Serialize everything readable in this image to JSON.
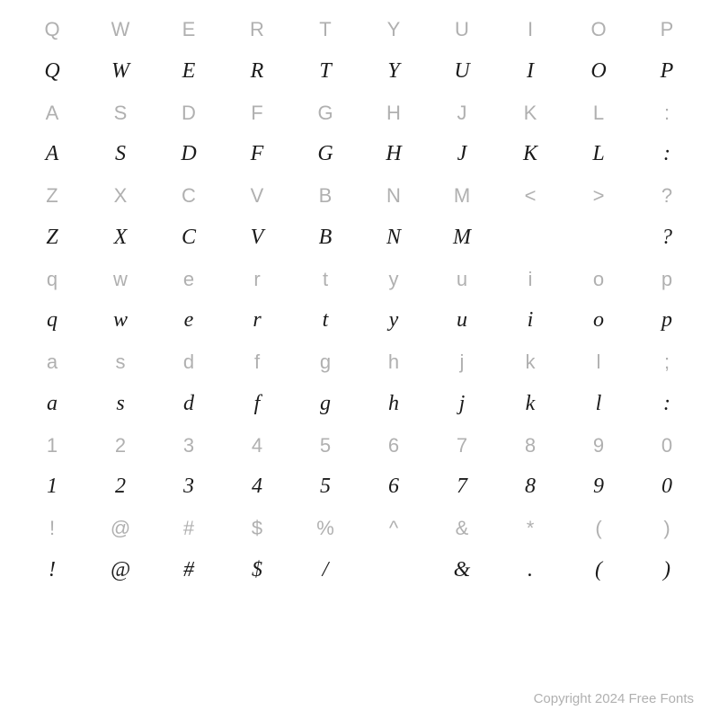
{
  "rows": [
    {
      "type": "label",
      "cells": [
        "Q",
        "W",
        "E",
        "R",
        "T",
        "Y",
        "U",
        "I",
        "O",
        "P"
      ]
    },
    {
      "type": "glyph",
      "cells": [
        "Q",
        "W",
        "E",
        "R",
        "T",
        "Y",
        "U",
        "I",
        "O",
        "P"
      ]
    },
    {
      "type": "label",
      "cells": [
        "A",
        "S",
        "D",
        "F",
        "G",
        "H",
        "J",
        "K",
        "L",
        ":"
      ]
    },
    {
      "type": "glyph",
      "cells": [
        "A",
        "S",
        "D",
        "F",
        "G",
        "H",
        "J",
        "K",
        "L",
        ":"
      ]
    },
    {
      "type": "label",
      "cells": [
        "Z",
        "X",
        "C",
        "V",
        "B",
        "N",
        "M",
        "<",
        ">",
        "?"
      ]
    },
    {
      "type": "glyph",
      "cells": [
        "Z",
        "X",
        "C",
        "V",
        "B",
        "N",
        "M",
        "",
        "",
        "?"
      ]
    },
    {
      "type": "label",
      "cells": [
        "q",
        "w",
        "e",
        "r",
        "t",
        "y",
        "u",
        "i",
        "o",
        "p"
      ]
    },
    {
      "type": "glyph",
      "cells": [
        "q",
        "w",
        "e",
        "r",
        "t",
        "y",
        "u",
        "i",
        "o",
        "p"
      ]
    },
    {
      "type": "label",
      "cells": [
        "a",
        "s",
        "d",
        "f",
        "g",
        "h",
        "j",
        "k",
        "l",
        ";"
      ]
    },
    {
      "type": "glyph",
      "cells": [
        "a",
        "s",
        "d",
        "f",
        "g",
        "h",
        "j",
        "k",
        "l",
        ":"
      ]
    },
    {
      "type": "label",
      "cells": [
        "1",
        "2",
        "3",
        "4",
        "5",
        "6",
        "7",
        "8",
        "9",
        "0"
      ]
    },
    {
      "type": "glyph",
      "cells": [
        "1",
        "2",
        "3",
        "4",
        "5",
        "6",
        "7",
        "8",
        "9",
        "0"
      ]
    },
    {
      "type": "label",
      "cells": [
        "!",
        "@",
        "#",
        "$",
        "%",
        "^",
        "&",
        "*",
        "(",
        ")"
      ]
    },
    {
      "type": "glyph",
      "cells": [
        "!",
        "@",
        "#",
        "$",
        "/",
        "",
        "&",
        ".",
        "(",
        ")"
      ]
    }
  ],
  "footer": "Copyright 2024 Free Fonts",
  "colors": {
    "label": "#b0b0b0",
    "glyph": "#1a1a1a",
    "background": "#ffffff"
  },
  "font_sizes": {
    "label": 22,
    "glyph": 24,
    "footer": 15
  },
  "grid": {
    "columns": 10,
    "rows": 14
  }
}
